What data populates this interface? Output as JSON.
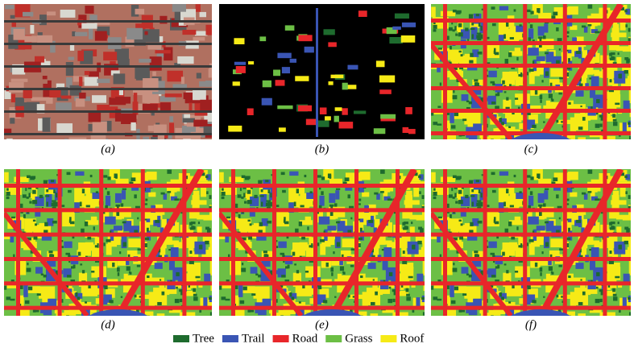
{
  "panels": [
    {
      "label": "(a)"
    },
    {
      "label": "(b)"
    },
    {
      "label": "(c)"
    },
    {
      "label": "(d)"
    },
    {
      "label": "(e)"
    },
    {
      "label": "(f)"
    }
  ],
  "legend": [
    {
      "name": "Tree",
      "color": "#1e6b2e"
    },
    {
      "name": "Trail",
      "color": "#3a55b4"
    },
    {
      "name": "Road",
      "color": "#e8262a"
    },
    {
      "name": "Grass",
      "color": "#6cbf45"
    },
    {
      "name": "Roof",
      "color": "#f6ea16"
    }
  ]
}
